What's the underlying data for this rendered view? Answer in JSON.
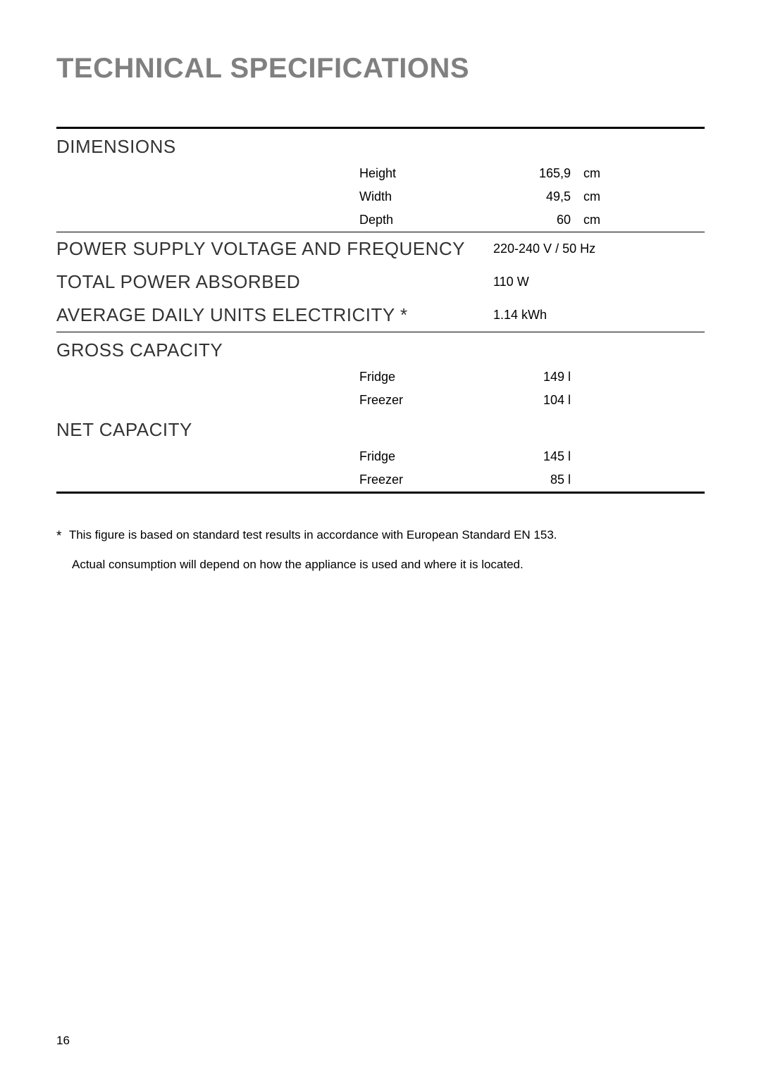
{
  "title": "TECHNICAL SPECIFICATIONS",
  "sections": {
    "dimensions": {
      "header": "DIMENSIONS",
      "rows": [
        {
          "label": "Height",
          "value": "165,9",
          "unit": "cm"
        },
        {
          "label": "Width",
          "value": "49,5",
          "unit": "cm"
        },
        {
          "label": "Depth",
          "value": "60",
          "unit": "cm"
        }
      ]
    },
    "power_supply": {
      "header": "POWER SUPPLY VOLTAGE AND FREQUENCY",
      "value": "220-240 V / 50 Hz"
    },
    "total_power": {
      "header": "TOTAL POWER ABSORBED",
      "value": "110 W"
    },
    "avg_daily": {
      "header": "AVERAGE DAILY UNITS ELECTRICITY *",
      "value": "1.14 kWh"
    },
    "gross_capacity": {
      "header": "GROSS CAPACITY",
      "rows": [
        {
          "label": "Fridge",
          "value": "149 l"
        },
        {
          "label": "Freezer",
          "value": "104 l"
        }
      ]
    },
    "net_capacity": {
      "header": "NET CAPACITY",
      "rows": [
        {
          "label": "Fridge",
          "value": "145 l"
        },
        {
          "label": "Freezer",
          "value": "85 l"
        }
      ]
    }
  },
  "footnote": {
    "star": "*",
    "line1": "This figure is based on standard test results in accordance with European Standard EN 153.",
    "line2": "Actual consumption will depend on how the appliance is used and where it is located."
  },
  "page_number": "16",
  "colors": {
    "title_color": "#808080",
    "section_header_color": "#333333",
    "text_color": "#000000",
    "background": "#ffffff",
    "border_color": "#000000"
  }
}
